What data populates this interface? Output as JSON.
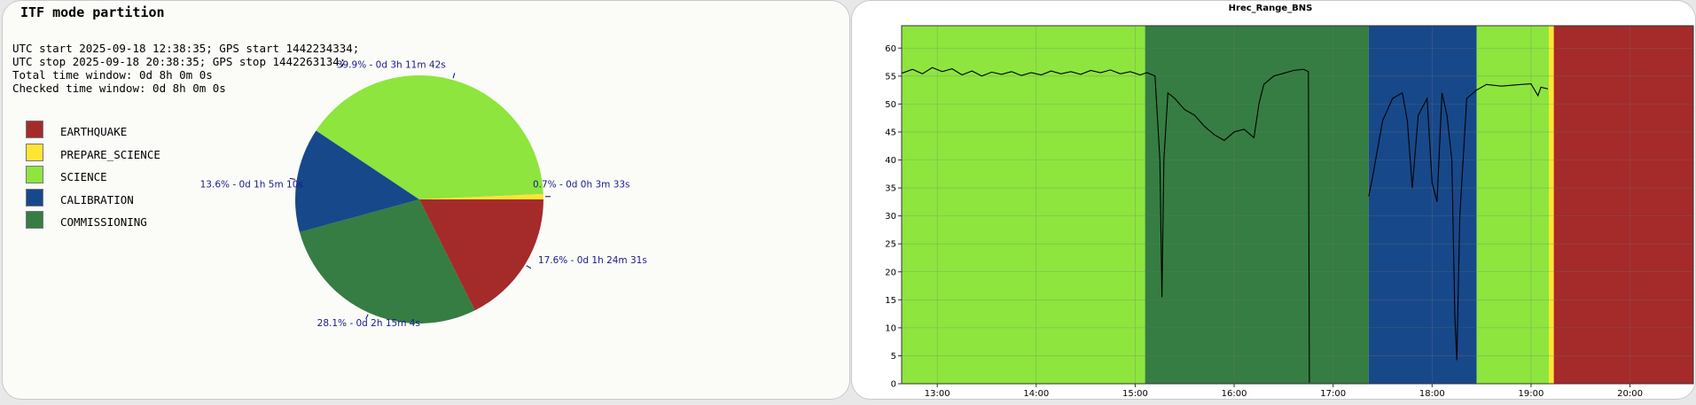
{
  "left": {
    "title": "ITF mode partition",
    "info": [
      "UTC start 2025-09-18 12:38:35; GPS start 1442234334;",
      "UTC stop 2025-09-18 20:38:35; GPS stop 1442263134;",
      "Total time window: 0d 8h 0m 0s",
      "Checked time window: 0d 8h 0m 0s"
    ]
  },
  "chart_data": [
    {
      "type": "pie",
      "title": "",
      "legend_placement": "left",
      "slices": [
        {
          "name": "EARTHQUAKE",
          "percent": 17.6,
          "label": "17.6% - 0d 1h 24m 31s",
          "color": "#a52a2a"
        },
        {
          "name": "COMMISSIONING",
          "percent": 28.1,
          "label": "28.1% - 0d 2h 15m 4s",
          "color": "#357d42"
        },
        {
          "name": "CALIBRATION",
          "percent": 13.6,
          "label": "13.6% - 0d 1h 5m 10s",
          "color": "#17488a"
        },
        {
          "name": "SCIENCE",
          "percent": 39.9,
          "label": "39.9% - 0d 3h 11m 42s",
          "color": "#8de53e"
        },
        {
          "name": "PREPARE_SCIENCE",
          "percent": 0.7,
          "label": "0.7% - 0d 0h 3m 33s",
          "color": "#ffe533"
        }
      ],
      "legend": [
        {
          "name": "EARTHQUAKE",
          "color": "#a52a2a"
        },
        {
          "name": "PREPARE_SCIENCE",
          "color": "#ffe533"
        },
        {
          "name": "SCIENCE",
          "color": "#8de53e"
        },
        {
          "name": "CALIBRATION",
          "color": "#17488a"
        },
        {
          "name": "COMMISSIONING",
          "color": "#357d42"
        }
      ]
    },
    {
      "type": "line",
      "title": "Hrec_Range_BNS",
      "xlabel": "",
      "ylabel": "",
      "x_unit": "hours (UTC)",
      "xlim": [
        12.64,
        20.64
      ],
      "ylim": [
        0,
        64
      ],
      "grid": true,
      "x_ticks": [
        {
          "value": 13,
          "label": "13:00"
        },
        {
          "value": 14,
          "label": "14:00"
        },
        {
          "value": 15,
          "label": "15:00"
        },
        {
          "value": 16,
          "label": "16:00"
        },
        {
          "value": 17,
          "label": "17:00"
        },
        {
          "value": 18,
          "label": "18:00"
        },
        {
          "value": 19,
          "label": "19:00"
        },
        {
          "value": 20,
          "label": "20:00"
        }
      ],
      "y_ticks": [
        0,
        5,
        10,
        15,
        20,
        25,
        30,
        35,
        40,
        45,
        50,
        55,
        60
      ],
      "background_bands": [
        {
          "mode": "SCIENCE",
          "from": 12.64,
          "to": 15.1,
          "color": "#8de53e"
        },
        {
          "mode": "COMMISSIONING",
          "from": 15.1,
          "to": 17.36,
          "color": "#357d42"
        },
        {
          "mode": "CALIBRATION",
          "from": 17.36,
          "to": 18.45,
          "color": "#17488a"
        },
        {
          "mode": "SCIENCE",
          "from": 18.45,
          "to": 19.18,
          "color": "#8de53e"
        },
        {
          "mode": "PREPARE_SCIENCE",
          "from": 19.18,
          "to": 19.23,
          "color": "#ffe533"
        },
        {
          "mode": "EARTHQUAKE",
          "from": 19.23,
          "to": 20.64,
          "color": "#a52a2a"
        }
      ],
      "series": [
        {
          "color": "#000000",
          "segments": [
            [
              [
                12.64,
                55.5
              ],
              [
                12.75,
                56.2
              ],
              [
                12.85,
                55.4
              ],
              [
                12.95,
                56.5
              ],
              [
                13.05,
                55.8
              ],
              [
                13.15,
                56.3
              ],
              [
                13.25,
                55.2
              ],
              [
                13.35,
                55.9
              ],
              [
                13.45,
                55.0
              ],
              [
                13.55,
                55.7
              ],
              [
                13.65,
                55.3
              ],
              [
                13.75,
                55.8
              ],
              [
                13.85,
                55.1
              ],
              [
                13.95,
                55.6
              ],
              [
                14.05,
                55.2
              ],
              [
                14.15,
                55.9
              ],
              [
                14.25,
                55.4
              ],
              [
                14.35,
                55.8
              ],
              [
                14.45,
                55.3
              ],
              [
                14.55,
                56.0
              ],
              [
                14.65,
                55.6
              ],
              [
                14.75,
                56.1
              ],
              [
                14.85,
                55.4
              ],
              [
                14.95,
                55.8
              ],
              [
                15.05,
                55.2
              ],
              [
                15.12,
                55.6
              ],
              [
                15.2,
                55.0
              ],
              [
                15.25,
                40
              ],
              [
                15.27,
                15.5
              ],
              [
                15.29,
                40
              ],
              [
                15.33,
                52
              ],
              [
                15.4,
                51
              ],
              [
                15.5,
                49
              ],
              [
                15.6,
                48
              ],
              [
                15.7,
                46
              ],
              [
                15.8,
                44.5
              ],
              [
                15.9,
                43.5
              ],
              [
                16.0,
                45
              ],
              [
                16.1,
                45.5
              ],
              [
                16.2,
                44
              ],
              [
                16.25,
                50
              ],
              [
                16.3,
                53.5
              ],
              [
                16.4,
                55
              ],
              [
                16.5,
                55.5
              ],
              [
                16.6,
                56
              ],
              [
                16.7,
                56.2
              ],
              [
                16.75,
                55.8
              ],
              [
                16.76,
                0.2
              ]
            ],
            [
              [
                17.36,
                33.5
              ],
              [
                17.4,
                37
              ],
              [
                17.5,
                47
              ],
              [
                17.6,
                51
              ],
              [
                17.7,
                52
              ],
              [
                17.75,
                47
              ],
              [
                17.8,
                35
              ],
              [
                17.86,
                48
              ],
              [
                17.95,
                51
              ],
              [
                18.0,
                36
              ],
              [
                18.05,
                32.5
              ],
              [
                18.1,
                52
              ],
              [
                18.15,
                48
              ],
              [
                18.2,
                40
              ],
              [
                18.23,
                12
              ],
              [
                18.25,
                4.2
              ],
              [
                18.28,
                30
              ],
              [
                18.35,
                51
              ],
              [
                18.45,
                52.5
              ],
              [
                18.55,
                53.5
              ],
              [
                18.7,
                53.2
              ],
              [
                18.9,
                53.5
              ],
              [
                19.0,
                53.6
              ],
              [
                19.07,
                51.5
              ],
              [
                19.1,
                53.0
              ],
              [
                19.17,
                52.7
              ]
            ]
          ]
        }
      ]
    }
  ]
}
